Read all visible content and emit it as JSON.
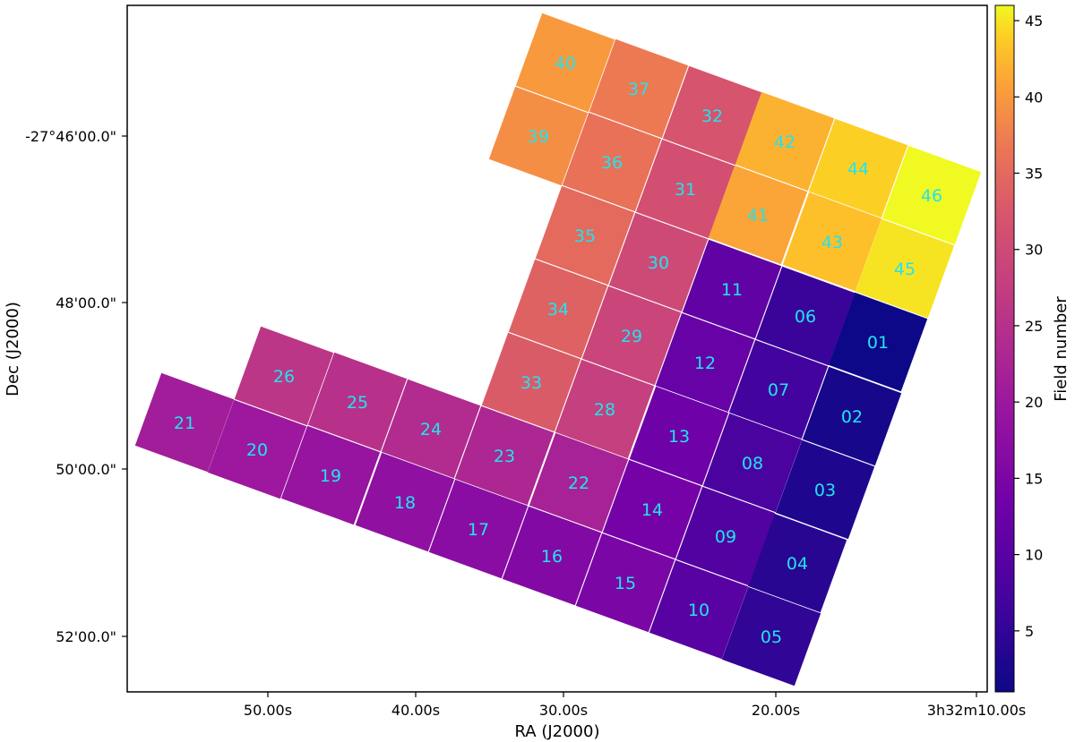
{
  "chart_data": {
    "type": "heatmap",
    "title": "",
    "xlabel": "RA (J2000)",
    "ylabel": "Dec (J2000)",
    "colorbar_label": "Field number",
    "colorbar_ticks": [
      5,
      10,
      15,
      20,
      25,
      30,
      35,
      40,
      45
    ],
    "colorbar_range": [
      1,
      46
    ],
    "colormap": "plasma",
    "label_color": "#22e3ee",
    "x_ticks": [
      "50.00s",
      "40.00s",
      "30.00s",
      "20.00s",
      "3h32m10.00s"
    ],
    "y_ticks": [
      "-27°46'00.0\"",
      "48'00.0\"",
      "50'00.0\"",
      "52'00.0\""
    ],
    "grid": false,
    "fields": [
      {
        "label": "01",
        "value": 1
      },
      {
        "label": "02",
        "value": 2
      },
      {
        "label": "03",
        "value": 3
      },
      {
        "label": "04",
        "value": 4
      },
      {
        "label": "05",
        "value": 5
      },
      {
        "label": "06",
        "value": 6
      },
      {
        "label": "07",
        "value": 7
      },
      {
        "label": "08",
        "value": 8
      },
      {
        "label": "09",
        "value": 9
      },
      {
        "label": "10",
        "value": 10
      },
      {
        "label": "11",
        "value": 11
      },
      {
        "label": "12",
        "value": 12
      },
      {
        "label": "13",
        "value": 13
      },
      {
        "label": "14",
        "value": 14
      },
      {
        "label": "15",
        "value": 15
      },
      {
        "label": "16",
        "value": 16
      },
      {
        "label": "17",
        "value": 17
      },
      {
        "label": "18",
        "value": 18
      },
      {
        "label": "19",
        "value": 19
      },
      {
        "label": "20",
        "value": 20
      },
      {
        "label": "21",
        "value": 21
      },
      {
        "label": "22",
        "value": 22
      },
      {
        "label": "23",
        "value": 23
      },
      {
        "label": "24",
        "value": 24
      },
      {
        "label": "25",
        "value": 25
      },
      {
        "label": "26",
        "value": 26
      },
      {
        "label": "28",
        "value": 28
      },
      {
        "label": "29",
        "value": 29
      },
      {
        "label": "30",
        "value": 30
      },
      {
        "label": "31",
        "value": 31
      },
      {
        "label": "32",
        "value": 32
      },
      {
        "label": "33",
        "value": 33
      },
      {
        "label": "34",
        "value": 34
      },
      {
        "label": "35",
        "value": 35
      },
      {
        "label": "36",
        "value": 36
      },
      {
        "label": "37",
        "value": 37
      },
      {
        "label": "39",
        "value": 39
      },
      {
        "label": "40",
        "value": 40
      },
      {
        "label": "41",
        "value": 41
      },
      {
        "label": "42",
        "value": 42
      },
      {
        "label": "43",
        "value": 43
      },
      {
        "label": "44",
        "value": 44
      },
      {
        "label": "45",
        "value": 45
      },
      {
        "label": "46",
        "value": 46
      }
    ]
  }
}
